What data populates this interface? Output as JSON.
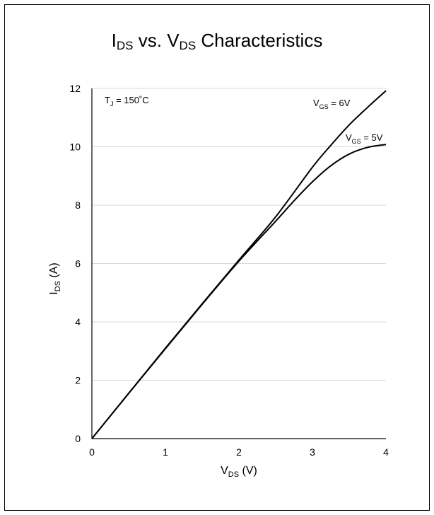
{
  "chart_data": {
    "type": "line",
    "title": {
      "main1": "I",
      "sub1": "DS",
      "mid": " vs. V",
      "sub2": "DS",
      "end": " Characteristics"
    },
    "xlabel": {
      "main": "V",
      "sub": "DS",
      "rest": " (V)"
    },
    "ylabel": {
      "main": "I",
      "sub": "DS",
      "rest": " (A)"
    },
    "xlim": [
      0,
      4
    ],
    "ylim": [
      0,
      12
    ],
    "xticks": [
      0,
      1,
      2,
      3,
      4
    ],
    "yticks": [
      0,
      2,
      4,
      6,
      8,
      10,
      12
    ],
    "grid": "horizontal",
    "annotation": {
      "main": "T",
      "sub": "J",
      "rest": " = 150˚C"
    },
    "series": [
      {
        "label": {
          "main": "V",
          "sub": "GS",
          "rest": " = 6V"
        },
        "x": [
          0,
          0.5,
          1.0,
          1.5,
          2.0,
          2.5,
          3.0,
          3.25,
          3.5,
          3.75,
          4.0
        ],
        "y": [
          0,
          1.55,
          3.1,
          4.62,
          6.12,
          7.6,
          9.3,
          10.05,
          10.75,
          11.35,
          11.92
        ]
      },
      {
        "label": {
          "main": "V",
          "sub": "GS",
          "rest": " = 5V"
        },
        "x": [
          0,
          0.5,
          1.0,
          1.5,
          2.0,
          2.5,
          2.75,
          3.0,
          3.25,
          3.5,
          3.75,
          4.0
        ],
        "y": [
          0,
          1.55,
          3.08,
          4.6,
          6.08,
          7.45,
          8.15,
          8.8,
          9.35,
          9.75,
          9.98,
          10.08
        ]
      }
    ]
  }
}
